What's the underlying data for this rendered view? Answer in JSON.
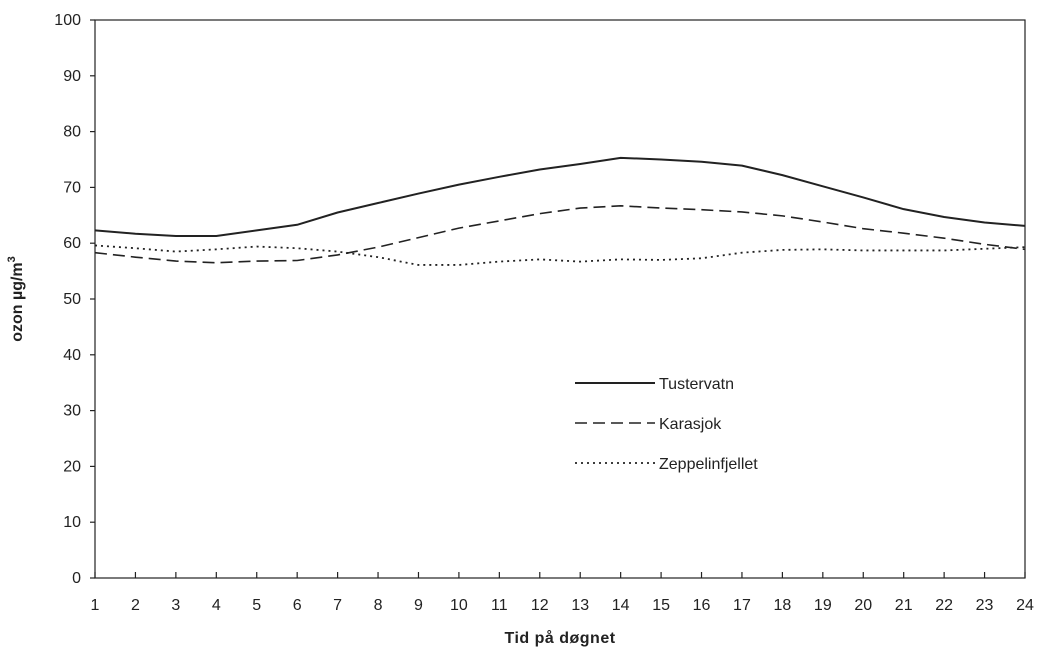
{
  "chart_data": {
    "type": "line",
    "title": "",
    "xlabel": "Tid på døgnet",
    "ylabel": "ozon µg/m",
    "ylabel_superscript": "3",
    "x": [
      1,
      2,
      3,
      4,
      5,
      6,
      7,
      8,
      9,
      10,
      11,
      12,
      13,
      14,
      15,
      16,
      17,
      18,
      19,
      20,
      21,
      22,
      23,
      24
    ],
    "ylim": [
      0,
      100
    ],
    "y_ticks": [
      0,
      10,
      20,
      30,
      40,
      50,
      60,
      70,
      80,
      90,
      100
    ],
    "grid": false,
    "legend_position": "center-right",
    "series": [
      {
        "name": "Tustervatn",
        "style": "solid",
        "values": [
          62.3,
          61.7,
          61.3,
          61.3,
          62.3,
          63.3,
          65.5,
          67.2,
          68.9,
          70.5,
          71.9,
          73.2,
          74.2,
          75.3,
          75.0,
          74.6,
          73.9,
          72.2,
          70.2,
          68.2,
          66.1,
          64.7,
          63.7,
          63.1
        ]
      },
      {
        "name": "Karasjok",
        "style": "dashed",
        "values": [
          58.3,
          57.5,
          56.8,
          56.5,
          56.8,
          56.9,
          57.9,
          59.3,
          61.0,
          62.7,
          64.0,
          65.3,
          66.3,
          66.7,
          66.3,
          66.0,
          65.6,
          64.9,
          63.8,
          62.6,
          61.8,
          60.9,
          59.8,
          58.9
        ]
      },
      {
        "name": "Zeppelinfjellet",
        "style": "dotted",
        "values": [
          59.6,
          59.1,
          58.5,
          58.9,
          59.4,
          59.1,
          58.5,
          57.5,
          56.1,
          56.1,
          56.7,
          57.1,
          56.7,
          57.1,
          57.0,
          57.3,
          58.3,
          58.8,
          58.9,
          58.7,
          58.7,
          58.7,
          59.0,
          59.3
        ]
      }
    ],
    "colors": {
      "line": "#222222",
      "axis": "#222222",
      "background": "#ffffff"
    }
  }
}
